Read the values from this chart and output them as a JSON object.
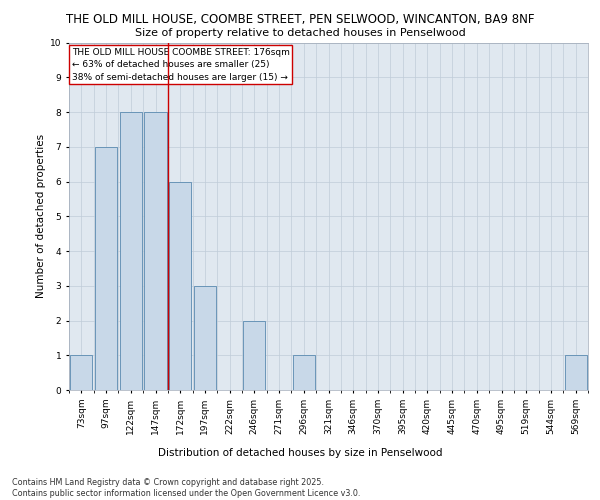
{
  "title_line1": "THE OLD MILL HOUSE, COOMBE STREET, PEN SELWOOD, WINCANTON, BA9 8NF",
  "title_line2": "Size of property relative to detached houses in Penselwood",
  "xlabel": "Distribution of detached houses by size in Penselwood",
  "ylabel": "Number of detached properties",
  "categories": [
    "73sqm",
    "97sqm",
    "122sqm",
    "147sqm",
    "172sqm",
    "197sqm",
    "222sqm",
    "246sqm",
    "271sqm",
    "296sqm",
    "321sqm",
    "346sqm",
    "370sqm",
    "395sqm",
    "420sqm",
    "445sqm",
    "470sqm",
    "495sqm",
    "519sqm",
    "544sqm",
    "569sqm"
  ],
  "values": [
    1,
    7,
    8,
    8,
    6,
    3,
    0,
    2,
    0,
    1,
    0,
    0,
    0,
    0,
    0,
    0,
    0,
    0,
    0,
    0,
    1
  ],
  "bar_color": "#c8d8e8",
  "bar_edge_color": "#5a8ab0",
  "highlight_index": 4,
  "highlight_line_color": "#cc0000",
  "annotation_text": "THE OLD MILL HOUSE COOMBE STREET: 176sqm\n← 63% of detached houses are smaller (25)\n38% of semi-detached houses are larger (15) →",
  "annotation_box_color": "#ffffff",
  "annotation_box_edge_color": "#cc0000",
  "ylim": [
    0,
    10
  ],
  "yticks": [
    0,
    1,
    2,
    3,
    4,
    5,
    6,
    7,
    8,
    9,
    10
  ],
  "background_color": "#e0e8f0",
  "footnote": "Contains HM Land Registry data © Crown copyright and database right 2025.\nContains public sector information licensed under the Open Government Licence v3.0.",
  "title_fontsize": 8.5,
  "subtitle_fontsize": 8,
  "axis_label_fontsize": 7.5,
  "tick_fontsize": 6.5,
  "annotation_fontsize": 6.5
}
